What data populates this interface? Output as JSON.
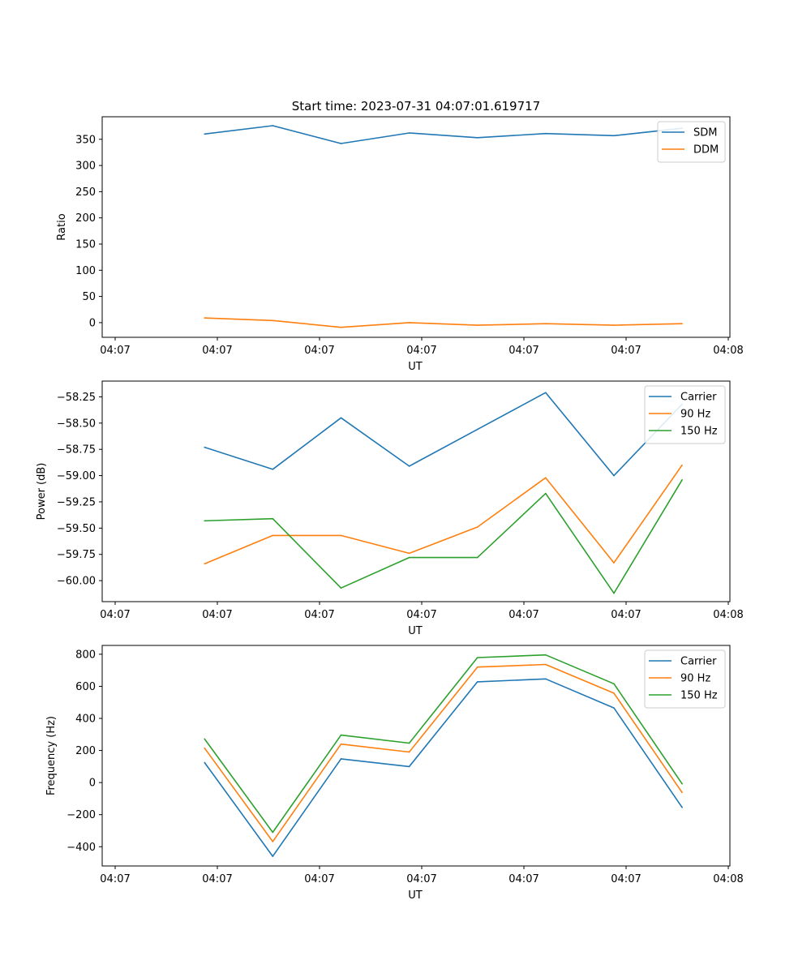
{
  "figure_title": "Start time: 2023-07-31 04:07:01.619717",
  "chart_data": [
    {
      "type": "line",
      "title": "Start time: 2023-07-31 04:07:01.619717",
      "xlabel": "UT",
      "ylabel": "Ratio",
      "x_tick_labels": [
        "04:07",
        "04:07",
        "04:07",
        "04:07",
        "04:07",
        "04:07",
        "04:08"
      ],
      "y_ticks": [
        0,
        50,
        100,
        150,
        200,
        250,
        300,
        350
      ],
      "y_tick_labels": [
        "0",
        "50",
        "100",
        "150",
        "200",
        "250",
        "300",
        "350"
      ],
      "xlim": [
        -0.5,
        8.7
      ],
      "ylim": [
        -28,
        393
      ],
      "x": [
        1,
        2,
        3,
        4,
        5,
        6,
        7,
        8
      ],
      "legend_position": "upper right",
      "series": [
        {
          "name": "SDM",
          "color": "#1f77b4",
          "values": [
            360,
            376,
            342,
            362,
            353,
            361,
            357,
            371
          ]
        },
        {
          "name": "DDM",
          "color": "#ff7f0e",
          "values": [
            9,
            4,
            -9,
            0,
            -5,
            -2,
            -5,
            -2
          ]
        }
      ]
    },
    {
      "type": "line",
      "title": "",
      "xlabel": "UT",
      "ylabel": "Power (dB)",
      "x_tick_labels": [
        "04:07",
        "04:07",
        "04:07",
        "04:07",
        "04:07",
        "04:07",
        "04:08"
      ],
      "y_ticks": [
        -58.25,
        -58.5,
        -58.75,
        -59.0,
        -59.25,
        -59.5,
        -59.75,
        -60.0
      ],
      "y_tick_labels": [
        "−58.25",
        "−58.50",
        "−58.75",
        "−59.00",
        "−59.25",
        "−59.50",
        "−59.75",
        "−60.00"
      ],
      "xlim": [
        -0.5,
        8.7
      ],
      "ylim": [
        -60.2,
        -58.1
      ],
      "x": [
        1,
        2,
        3,
        4,
        5,
        6,
        7,
        8
      ],
      "legend_position": "upper right",
      "series": [
        {
          "name": "Carrier",
          "color": "#1f77b4",
          "values": [
            -58.73,
            -58.94,
            -58.45,
            -58.91,
            -58.56,
            -58.21,
            -59.0,
            -58.32
          ]
        },
        {
          "name": "90 Hz",
          "color": "#ff7f0e",
          "values": [
            -59.84,
            -59.57,
            -59.57,
            -59.74,
            -59.49,
            -59.02,
            -59.83,
            -58.9
          ]
        },
        {
          "name": "150 Hz",
          "color": "#2ca02c",
          "values": [
            -59.43,
            -59.41,
            -60.07,
            -59.78,
            -59.78,
            -59.17,
            -60.12,
            -59.04
          ]
        }
      ]
    },
    {
      "type": "line",
      "title": "",
      "xlabel": "UT",
      "ylabel": "Frequency (Hz)",
      "x_tick_labels": [
        "04:07",
        "04:07",
        "04:07",
        "04:07",
        "04:07",
        "04:07",
        "04:08"
      ],
      "y_ticks": [
        -400,
        -200,
        0,
        200,
        400,
        600,
        800
      ],
      "y_tick_labels": [
        "−400",
        "−200",
        "0",
        "200",
        "400",
        "600",
        "800"
      ],
      "xlim": [
        -0.5,
        8.7
      ],
      "ylim": [
        -520,
        855
      ],
      "x": [
        1,
        2,
        3,
        4,
        5,
        6,
        7,
        8
      ],
      "legend_position": "upper right",
      "series": [
        {
          "name": "Carrier",
          "color": "#1f77b4",
          "values": [
            125,
            -460,
            148,
            100,
            628,
            646,
            465,
            -155
          ]
        },
        {
          "name": "90 Hz",
          "color": "#ff7f0e",
          "values": [
            215,
            -368,
            240,
            190,
            720,
            736,
            557,
            -62
          ]
        },
        {
          "name": "150 Hz",
          "color": "#2ca02c",
          "values": [
            272,
            -310,
            296,
            246,
            779,
            796,
            616,
            -8
          ]
        }
      ]
    }
  ]
}
